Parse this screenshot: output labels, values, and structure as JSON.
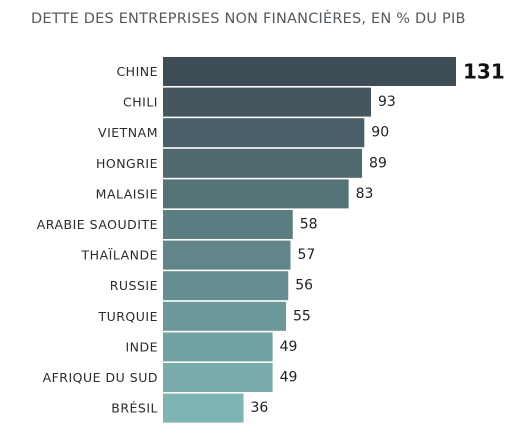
{
  "chart_data": {
    "type": "bar",
    "orientation": "horizontal",
    "title": "DETTE DES ENTREPRISES NON FINANCIÈRES, EN % DU PIB",
    "categories": [
      "CHINE",
      "CHILI",
      "VIETNAM",
      "HONGRIE",
      "MALAISIE",
      "ARABIE SAOUDITE",
      "THAÏLANDE",
      "RUSSIE",
      "TURQUIE",
      "INDE",
      "AFRIQUE DU SUD",
      "BRÉSIL"
    ],
    "values": [
      131,
      93,
      90,
      89,
      83,
      58,
      57,
      56,
      55,
      49,
      49,
      36
    ],
    "xlim": [
      0,
      131
    ],
    "grid": false,
    "legend": "none",
    "colors": {
      "bar_start": "#3e4c56",
      "bar_end": "#7eb5b2"
    }
  }
}
